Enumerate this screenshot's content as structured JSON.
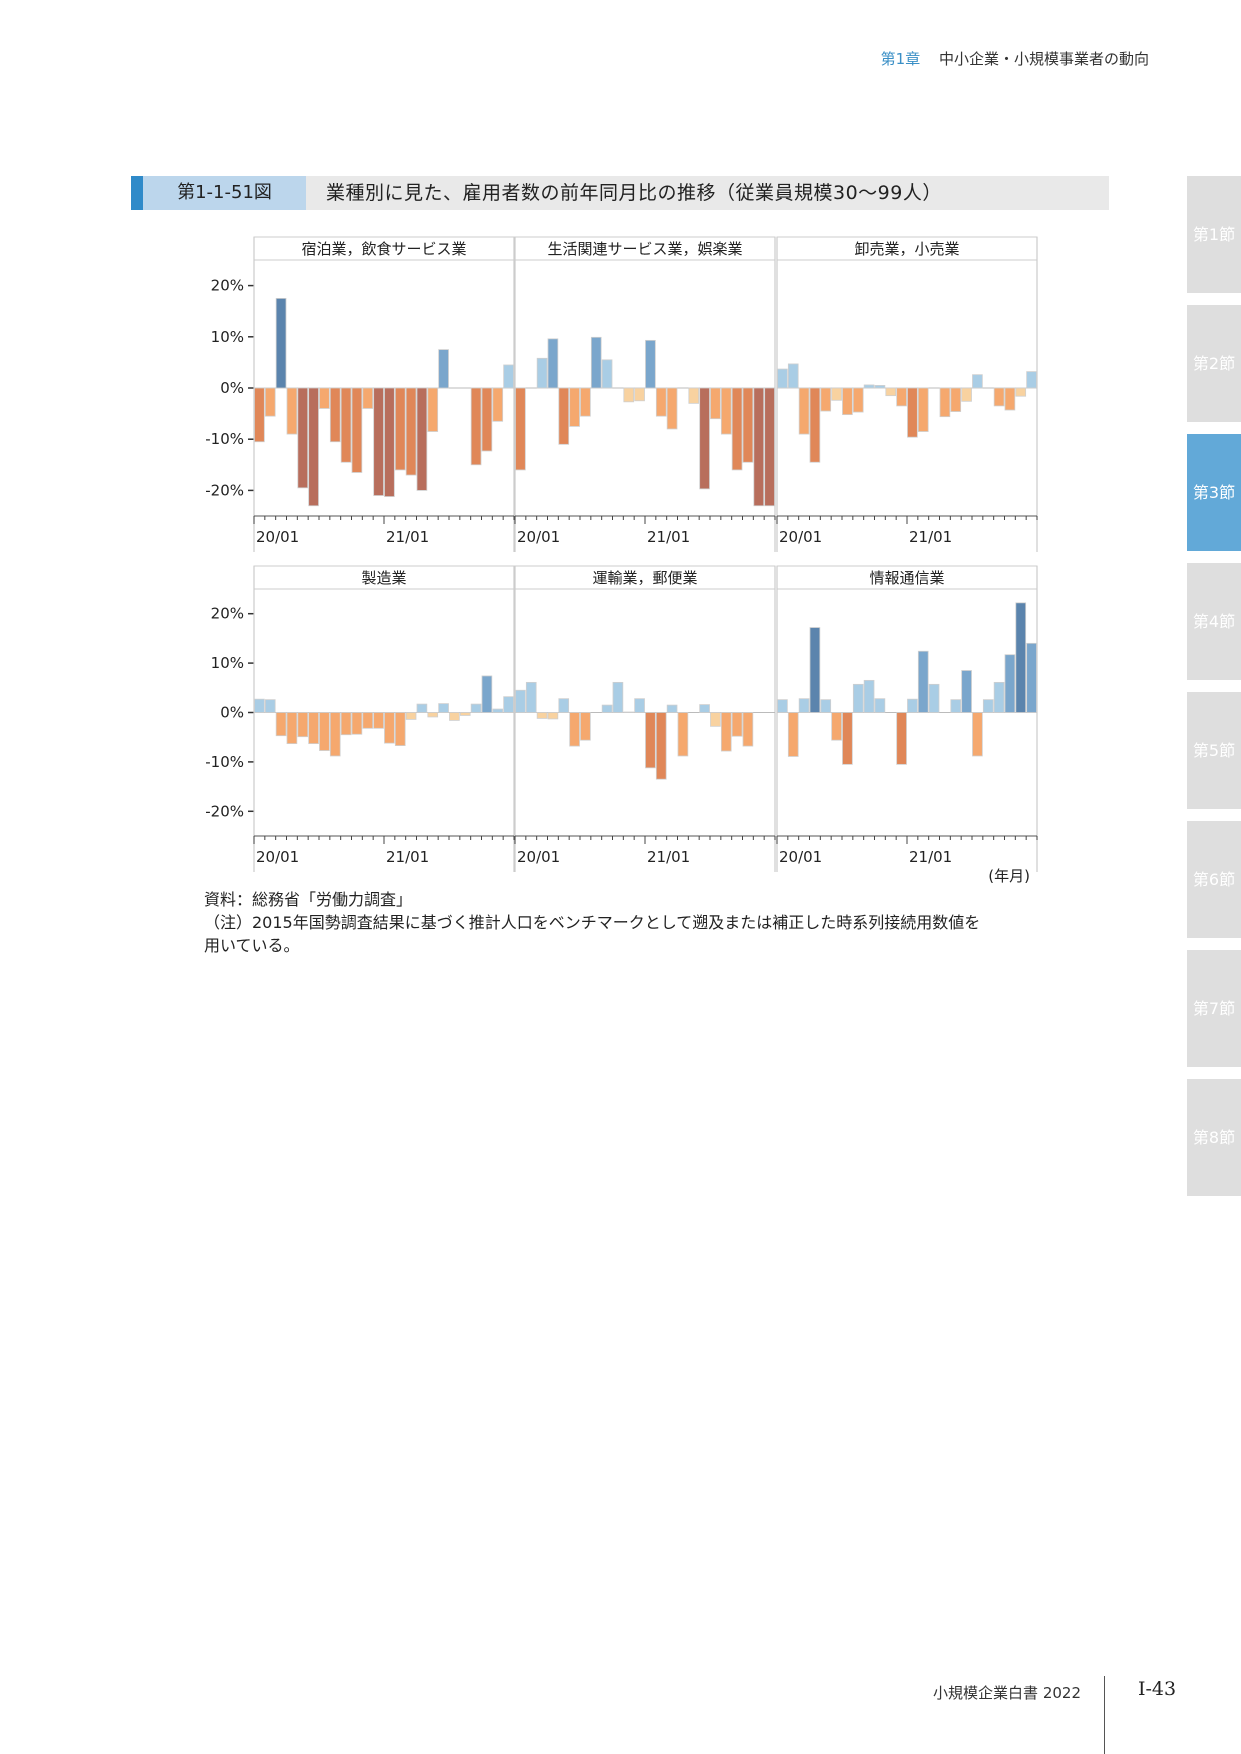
{
  "header": {
    "chapter": "第1章",
    "chapter_title": "中小企業・小規模事業者の動向"
  },
  "figure": {
    "number": "第1-1-51図",
    "title": "業種別に見た、雇用者数の前年同月比の推移（従業員規模30〜99人）"
  },
  "side_tabs": [
    {
      "label": "第1節",
      "active": false
    },
    {
      "label": "第2節",
      "active": false
    },
    {
      "label": "第3節",
      "active": true
    },
    {
      "label": "第4節",
      "active": false
    },
    {
      "label": "第5節",
      "active": false
    },
    {
      "label": "第6節",
      "active": false
    },
    {
      "label": "第7節",
      "active": false
    },
    {
      "label": "第8節",
      "active": false
    }
  ],
  "colors": {
    "pos_light": "#a9cde5",
    "pos_mid": "#7aa6cc",
    "pos_dark": "#5b84ad",
    "neg_light": "#f8d2a0",
    "neg_mid": "#f5a86e",
    "neg_dark": "#e08758",
    "neg_deep": "#b86e5c",
    "grid": "#cccccc"
  },
  "chart_data": {
    "type": "bar",
    "layout": "facet-3x2",
    "x_unit_label": "(年月)",
    "x_ticks": [
      "20/01",
      "21/01"
    ],
    "y_ticks": [
      "20%",
      "10%",
      "0%",
      "-10%",
      "-20%"
    ],
    "ylim": [
      -25,
      25
    ],
    "months": 24,
    "panels": [
      {
        "name": "宿泊業，飲食サービス業",
        "values": [
          -10.5,
          -5.5,
          17.5,
          -9,
          -19.5,
          -23,
          -4,
          -10.5,
          -14.5,
          -16.5,
          -4,
          -21,
          -21.2,
          -16,
          -17,
          -20,
          -8.5,
          7.5,
          0,
          0,
          -15,
          -12.3,
          -6.5,
          4.5
        ]
      },
      {
        "name": "生活関連サービス業，娯楽業",
        "values": [
          -16,
          0,
          5.8,
          9.6,
          -11,
          -7.5,
          -5.5,
          9.9,
          5.5,
          0,
          -2.7,
          -2.5,
          9.3,
          -5.5,
          -8,
          0,
          -3,
          -19.7,
          -6,
          -9,
          -16,
          -14.5,
          -23,
          -23
        ]
      },
      {
        "name": "卸売業，小売業",
        "values": [
          3.7,
          4.7,
          -9,
          -14.5,
          -4.5,
          -2.4,
          -5.2,
          -4.7,
          0.6,
          0.5,
          -1.5,
          -3.5,
          -9.6,
          -8.5,
          0,
          -5.6,
          -4.6,
          -2.6,
          2.6,
          0,
          -3.5,
          -4.3,
          -1.6,
          3.2
        ]
      },
      {
        "name": "製造業",
        "values": [
          2.7,
          2.6,
          -4.7,
          -6.3,
          -4.9,
          -6.3,
          -7.7,
          -8.8,
          -4.5,
          -4.4,
          -3.2,
          -3.2,
          -6.2,
          -6.7,
          -1.4,
          1.7,
          -0.9,
          1.8,
          -1.6,
          -0.6,
          1.7,
          7.4,
          0.7,
          3.2
        ]
      },
      {
        "name": "運輸業，郵便業",
        "values": [
          4.5,
          6.1,
          -1.2,
          -1.3,
          2.8,
          -6.8,
          -5.6,
          0,
          1.5,
          6.1,
          0.1,
          2.8,
          -11.2,
          -13.5,
          1.5,
          -8.8,
          0,
          1.6,
          -2.8,
          -7.8,
          -4.8,
          -6.8,
          0,
          0
        ]
      },
      {
        "name": "情報通信業",
        "values": [
          2.6,
          -8.9,
          2.8,
          17.2,
          2.6,
          -5.6,
          -10.5,
          5.7,
          6.5,
          2.8,
          0,
          -10.5,
          2.7,
          12.4,
          5.7,
          0,
          2.6,
          8.5,
          -8.8,
          2.6,
          6.1,
          11.7,
          22.2,
          14
        ]
      }
    ]
  },
  "notes": {
    "source": "資料：総務省「労働力調査」",
    "note_line1": "（注）2015年国勢調査結果に基づく推計人口をベンチマークとして遡及または補正した時系列接続用数値を",
    "note_line2": "用いている。"
  },
  "footer": {
    "book": "小規模企業白書 2022",
    "page": "Ⅰ-43"
  }
}
